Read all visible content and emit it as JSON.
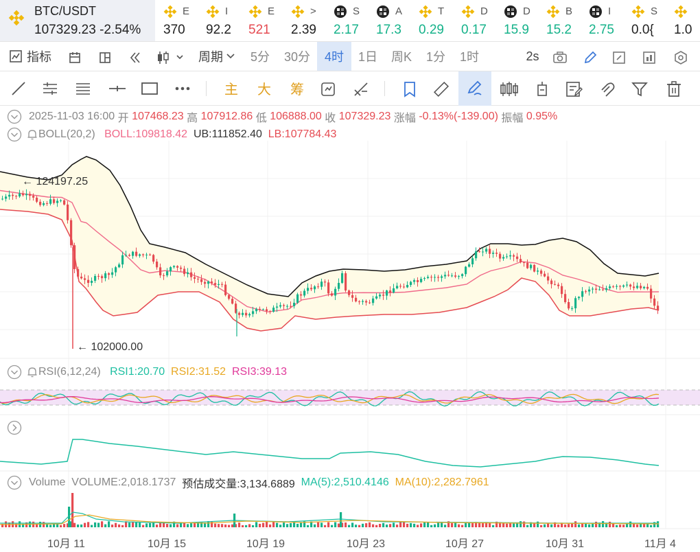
{
  "ticker": {
    "main": {
      "symbol": "BTC/USDT",
      "price": "107329.23",
      "change": "-2.54%"
    },
    "items": [
      {
        "icon": "bnb-icon",
        "letter": "E",
        "value": "370",
        "color": "#222"
      },
      {
        "icon": "bnb-icon",
        "letter": "I",
        "value": "92.2",
        "color": "#222"
      },
      {
        "icon": "bnb-icon",
        "letter": "E",
        "value": "521",
        "color": "#e54b52"
      },
      {
        "icon": "bnb-icon",
        "letter": ">",
        "value": "2.39",
        "color": "#222"
      },
      {
        "icon": "checker-icon",
        "letter": "S",
        "value": "2.17",
        "color": "#15b28a"
      },
      {
        "icon": "checker-icon",
        "letter": "A",
        "value": "17.3",
        "color": "#15b28a"
      },
      {
        "icon": "bnb-icon",
        "letter": "T",
        "value": "0.29",
        "color": "#15b28a"
      },
      {
        "icon": "bnb-icon",
        "letter": "D",
        "value": "0.17",
        "color": "#15b28a"
      },
      {
        "icon": "checker-icon",
        "letter": "D",
        "value": "15.9",
        "color": "#15b28a"
      },
      {
        "icon": "bnb-icon",
        "letter": "B",
        "value": "15.2",
        "color": "#15b28a"
      },
      {
        "icon": "checker-icon",
        "letter": "I",
        "value": "2.75",
        "color": "#15b28a"
      },
      {
        "icon": "bnb-icon",
        "letter": "S",
        "value": "0.0{",
        "color": "#222"
      },
      {
        "icon": "bnb-icon",
        "letter": "",
        "value": "1.0",
        "color": "#222"
      }
    ]
  },
  "toolbar1": {
    "indicators": "指标",
    "period": "周期",
    "intervals": [
      "5分",
      "30分",
      "4时",
      "1日",
      "周K",
      "1分",
      "1时"
    ],
    "active_interval": "4时",
    "refresh": "2s"
  },
  "toolbar2": {
    "zhu": "主",
    "da": "大",
    "chou": "筹"
  },
  "ohlc": {
    "datetime": "2025-11-03 16:00",
    "open_label": "开",
    "open": "107468.23",
    "high_label": "高",
    "high": "107912.86",
    "low_label": "低",
    "low": "106888.00",
    "close_label": "收",
    "close": "107329.23",
    "change_label": "涨幅",
    "change": "-0.13%(-139.00)",
    "amplitude_label": "振幅",
    "amplitude": "0.95%"
  },
  "boll": {
    "name": "BOLL(20,2)",
    "boll": "BOLL:109818.42",
    "ub": "UB:111852.40",
    "lb": "LB:107784.43"
  },
  "price_annotations": {
    "high": "124197.25",
    "low": "102000.00"
  },
  "rsi": {
    "name": "RSI(6,12,24)",
    "rsi1": "RSI1:20.70",
    "rsi2": "RSI2:31.52",
    "rsi3": "RSI3:39.13"
  },
  "volume": {
    "name": "Volume",
    "volume": "VOLUME:2,018.1737",
    "estimate": "预估成交量:3,134.6889",
    "ma5": "MA(5):2,510.4146",
    "ma10": "MA(10):2,282.7961"
  },
  "x_axis": [
    "10月 11",
    "10月 15",
    "10月 19",
    "10月 23",
    "10月 27",
    "10月 31",
    "11月 4"
  ],
  "colors": {
    "up": "#15b28a",
    "down": "#e54b52",
    "accent": "#3c78d8",
    "boll_fill": "#fffbe6",
    "rsi_band": "#f3e2f7"
  }
}
